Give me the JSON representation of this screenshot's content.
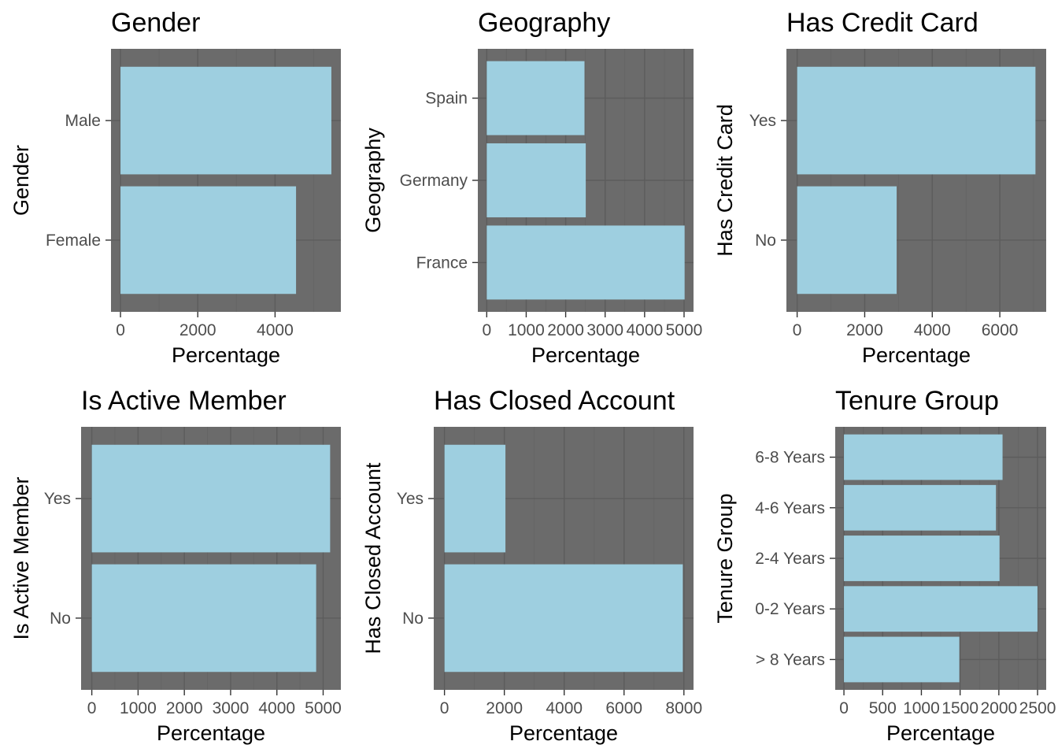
{
  "colors": {
    "panel_background": "#6b6b6b",
    "grid": "#5c5c5c",
    "bar_fill": "#9ecfe0",
    "text": "#000000",
    "tick_text": "#4d4d4d"
  },
  "chart_data": [
    {
      "type": "bar",
      "orientation": "horizontal",
      "title": "Gender",
      "xlabel": "Percentage",
      "ylabel": "Gender",
      "categories": [
        "Female",
        "Male"
      ],
      "values": [
        4543,
        5457
      ],
      "xlim": [
        0,
        5457
      ],
      "xticks": [
        0,
        2000,
        4000
      ],
      "xtick_labels": [
        "0",
        "2000",
        "4000"
      ]
    },
    {
      "type": "bar",
      "orientation": "horizontal",
      "title": "Geography",
      "xlabel": "Percentage",
      "ylabel": "Geography",
      "categories": [
        "France",
        "Germany",
        "Spain"
      ],
      "values": [
        5014,
        2509,
        2477
      ],
      "xlim": [
        0,
        5014
      ],
      "xticks": [
        0,
        1000,
        2000,
        3000,
        4000,
        5000
      ],
      "xtick_labels": [
        "0",
        "1000",
        "2000",
        "3000",
        "4000",
        "5000"
      ]
    },
    {
      "type": "bar",
      "orientation": "horizontal",
      "title": "Has Credit Card",
      "xlabel": "Percentage",
      "ylabel": "Has Credit Card",
      "categories": [
        "No",
        "Yes"
      ],
      "values": [
        2945,
        7055
      ],
      "xlim": [
        0,
        7055
      ],
      "xticks": [
        0,
        2000,
        4000,
        6000
      ],
      "xtick_labels": [
        "0",
        "2000",
        "4000",
        "6000"
      ]
    },
    {
      "type": "bar",
      "orientation": "horizontal",
      "title": "Is Active Member",
      "xlabel": "Percentage",
      "ylabel": "Is Active Member",
      "categories": [
        "No",
        "Yes"
      ],
      "values": [
        4849,
        5151
      ],
      "xlim": [
        0,
        5151
      ],
      "xticks": [
        0,
        1000,
        2000,
        3000,
        4000,
        5000
      ],
      "xtick_labels": [
        "0",
        "1000",
        "2000",
        "3000",
        "4000",
        "5000"
      ]
    },
    {
      "type": "bar",
      "orientation": "horizontal",
      "title": "Has Closed Account",
      "xlabel": "Percentage",
      "ylabel": "Has Closed Account",
      "categories": [
        "No",
        "Yes"
      ],
      "values": [
        7963,
        2037
      ],
      "xlim": [
        0,
        7963
      ],
      "xticks": [
        0,
        2000,
        4000,
        6000,
        8000
      ],
      "xtick_labels": [
        "0",
        "2000",
        "4000",
        "6000",
        "8000"
      ]
    },
    {
      "type": "bar",
      "orientation": "horizontal",
      "title": "Tenure Group",
      "xlabel": "Percentage",
      "ylabel": "Tenure Group",
      "categories": [
        "> 8 Years",
        "0-2 Years",
        "2-4 Years",
        "4-6 Years",
        "6-8 Years"
      ],
      "values": [
        1490,
        2499,
        2009,
        1963,
        2048
      ],
      "xlim": [
        0,
        2499
      ],
      "xticks": [
        0,
        500,
        1000,
        1500,
        2000,
        2500
      ],
      "xtick_labels": [
        "0",
        "500",
        "1000",
        "1500",
        "2000",
        "2500"
      ]
    }
  ]
}
